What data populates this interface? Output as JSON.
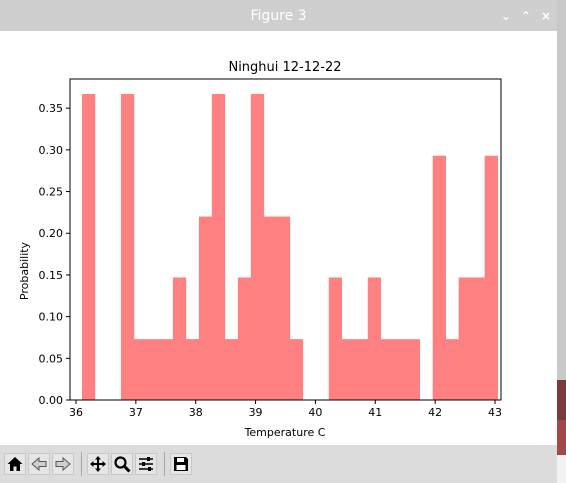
{
  "window": {
    "title": "Figure 3"
  },
  "window_controls": {
    "minimize": "⌄",
    "maximize": "⌃",
    "close": "×"
  },
  "toolbar": {
    "buttons": [
      {
        "name": "home-icon"
      },
      {
        "name": "back-icon"
      },
      {
        "name": "forward-icon"
      },
      {
        "name": "pan-icon"
      },
      {
        "name": "zoom-icon"
      },
      {
        "name": "configure-subplots-icon"
      },
      {
        "name": "save-icon"
      }
    ]
  },
  "chart_data": {
    "type": "bar",
    "title": "Ninghui 12-12-22",
    "xlabel": "Temperature C",
    "ylabel": "Probability",
    "xlim": [
      35.9,
      43.1
    ],
    "ylim": [
      0,
      0.385
    ],
    "xticks": [
      36,
      37,
      38,
      39,
      40,
      41,
      42,
      43
    ],
    "yticks": [
      "0.00",
      "0.05",
      "0.10",
      "0.15",
      "0.20",
      "0.25",
      "0.30",
      "0.35"
    ],
    "yticks_values": [
      0,
      0.05,
      0.1,
      0.15,
      0.2,
      0.25,
      0.3,
      0.35
    ],
    "bar_color": "#ff8080",
    "grid": false,
    "bin_start": 36.1,
    "bin_width": 0.217,
    "values": [
      0.367,
      0,
      0,
      0.367,
      0.073,
      0.073,
      0.073,
      0.147,
      0.073,
      0.22,
      0.367,
      0.073,
      0.147,
      0.367,
      0.22,
      0.22,
      0.073,
      0,
      0,
      0.147,
      0.073,
      0.073,
      0.147,
      0.073,
      0.073,
      0.073,
      0,
      0.293,
      0.073,
      0.147,
      0.147,
      0.293
    ]
  }
}
